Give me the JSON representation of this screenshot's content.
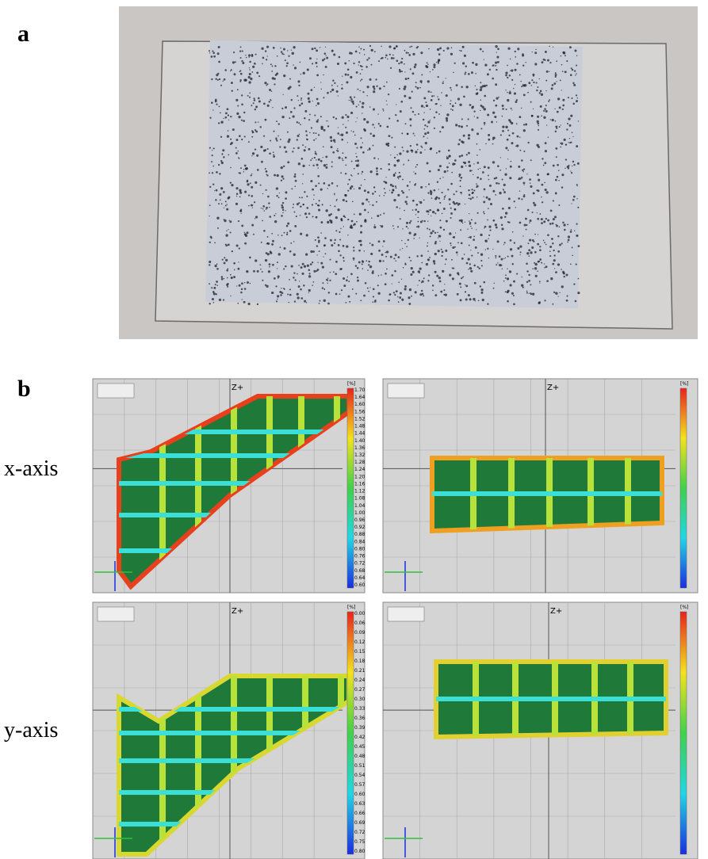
{
  "figure": {
    "panel_a_label": "a",
    "panel_b_label": "b",
    "rows": [
      "x-axis",
      "y-axis"
    ],
    "plots": [
      {
        "axis_label": "Z+",
        "unit": "[%]",
        "colorbar_ticks": [
          "1.70",
          "1.64",
          "1.60",
          "1.56",
          "1.52",
          "1.48",
          "1.44",
          "1.40",
          "1.36",
          "1.32",
          "1.28",
          "1.24",
          "1.20",
          "1.16",
          "1.12",
          "1.08",
          "1.04",
          "1.00",
          "0.96",
          "0.92",
          "0.88",
          "0.84",
          "0.80",
          "0.76",
          "0.72",
          "0.68",
          "0.64",
          "0.60"
        ]
      },
      {
        "axis_label": "Z+",
        "unit": "[%]"
      },
      {
        "axis_label": "Z+",
        "unit": "[%]",
        "colorbar_ticks": [
          "0.00",
          "0.06",
          "0.09",
          "0.12",
          "0.15",
          "0.18",
          "0.21",
          "0.24",
          "0.27",
          "0.30",
          "0.33",
          "0.36",
          "0.39",
          "0.42",
          "0.45",
          "0.48",
          "0.51",
          "0.54",
          "0.57",
          "0.60",
          "0.63",
          "0.66",
          "0.69",
          "0.72",
          "0.75",
          "0.80"
        ]
      },
      {
        "axis_label": "Z+",
        "unit": "[%]"
      }
    ]
  }
}
